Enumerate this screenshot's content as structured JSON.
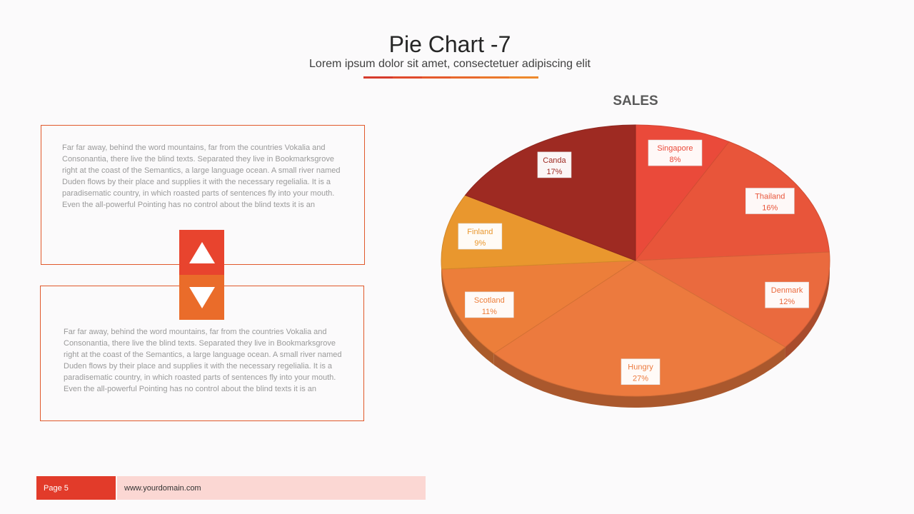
{
  "header": {
    "title": "Pie Chart -7",
    "subtitle": "Lorem ipsum dolor sit amet, consectetuer adipiscing elit",
    "rule_colors": [
      "#d63b2c",
      "#e04a2c",
      "#e55a2c",
      "#e8682c",
      "#eb782c",
      "#ee892c"
    ]
  },
  "panels": {
    "top_text": "Far far away, behind the word mountains, far from the countries Vokalia and Consonantia, there live the blind texts. Separated they live in Bookmarksgrove right at the coast of the Semantics, a large language ocean. A small river named Duden flows by their place and supplies it with the necessary regelialia. It is a paradisematic country, in which roasted parts of sentences fly into your mouth. Even the all-powerful Pointing has no control about the blind texts it is an",
    "bottom_text": "Far far away, behind the word mountains, far from the countries Vokalia and Consonantia, there live the blind texts. Separated they live in Bookmarksgrove right at the coast of the Semantics, a large language ocean. A small river named Duden flows by their place and supplies it with the necessary regelialia. It is a paradisematic country, in which roasted parts of sentences fly into your mouth. Even the all-powerful Pointing has no control about the blind texts it is an",
    "up_icon": "triangle-up-icon",
    "down_icon": "triangle-down-icon"
  },
  "chart_data": {
    "type": "pie",
    "title": "SALES",
    "categories": [
      "Singapore",
      "Thailand",
      "Denmark",
      "Hungry",
      "Scotland",
      "Finland",
      "Canda"
    ],
    "values": [
      8,
      16,
      12,
      27,
      11,
      9,
      17
    ],
    "labels": [
      "8%",
      "16%",
      "12%",
      "27%",
      "11%",
      "9%",
      "17%"
    ],
    "colors": [
      "#ea4a3a",
      "#e8553a",
      "#ea6a3e",
      "#ec7a3e",
      "#ec7e3a",
      "#e9972e",
      "#9e2a22"
    ],
    "start": "12 o'clock, clockwise",
    "style": "3d"
  },
  "footer": {
    "page": "Page 5",
    "domain": "www.yourdomain.com"
  },
  "colors": {
    "accent_red": "#e23b2a",
    "accent_orange": "#ea6c2a",
    "panel_border": "#e0592b"
  }
}
